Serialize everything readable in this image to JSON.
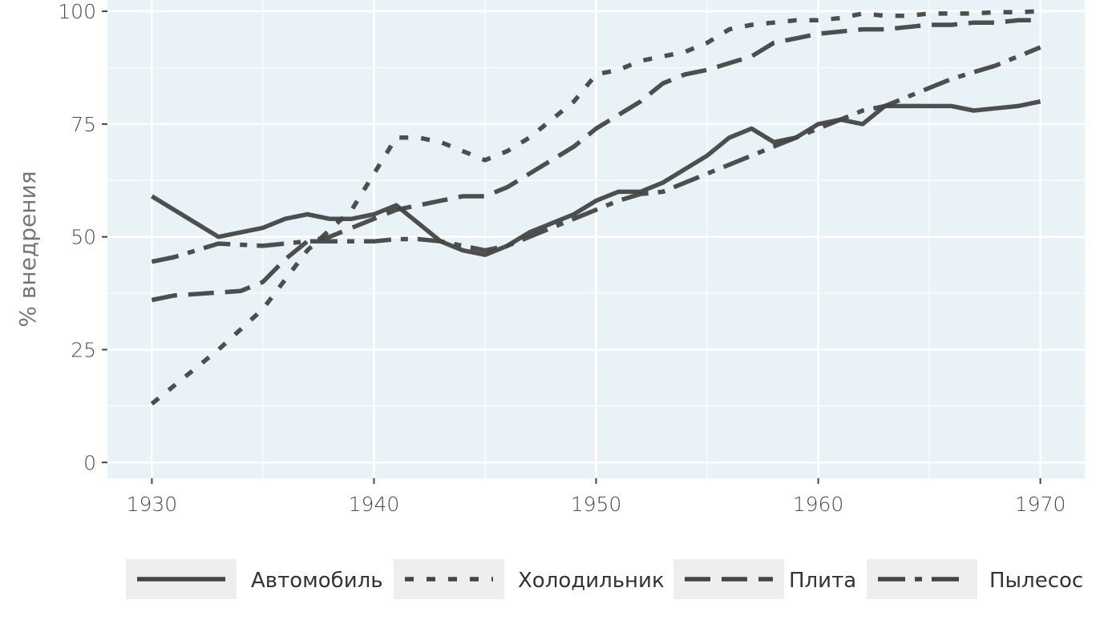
{
  "chart_data": {
    "type": "line",
    "title": "",
    "xlabel": "",
    "ylabel": "% внедрения",
    "xlim": [
      1928,
      1972
    ],
    "ylim": [
      -3.5,
      102.5
    ],
    "x_ticks": [
      1930,
      1940,
      1950,
      1960,
      1970
    ],
    "y_ticks": [
      0,
      25,
      50,
      75,
      100
    ],
    "grid": true,
    "legend_position": "bottom",
    "line_color": "#444444",
    "panel_background": "#e9f2f6",
    "series": [
      {
        "name": "Автомобиль",
        "dash": "solid",
        "x": [
          1930,
          1933,
          1935,
          1936,
          1937,
          1938,
          1939,
          1940,
          1941,
          1942,
          1943,
          1944,
          1945,
          1946,
          1947,
          1948,
          1949,
          1950,
          1951,
          1952,
          1953,
          1954,
          1955,
          1956,
          1957,
          1958,
          1959,
          1960,
          1961,
          1962,
          1963,
          1964,
          1965,
          1966,
          1967,
          1968,
          1969,
          1970
        ],
        "y": [
          59,
          50,
          52,
          54,
          55,
          54,
          54,
          55,
          57,
          53,
          49,
          47,
          46,
          48,
          51,
          53,
          55,
          58,
          60,
          60,
          62,
          65,
          68,
          72,
          74,
          71,
          72,
          75,
          76,
          75,
          79,
          79,
          79,
          79,
          78,
          78.5,
          79,
          80
        ]
      },
      {
        "name": "Холодильник",
        "dash": "dotted",
        "x": [
          1930,
          1933,
          1935,
          1937,
          1939,
          1940,
          1941,
          1942,
          1943,
          1944,
          1945,
          1946,
          1947,
          1948,
          1949,
          1950,
          1951,
          1952,
          1953,
          1954,
          1955,
          1956,
          1957,
          1958,
          1959,
          1960,
          1961,
          1962,
          1963,
          1964,
          1965,
          1966,
          1967,
          1968,
          1969,
          1970
        ],
        "y": [
          13,
          25,
          34,
          47,
          56,
          64,
          72,
          72,
          71,
          69,
          67,
          69,
          72,
          76,
          80,
          86,
          87,
          89,
          90,
          91,
          93,
          96,
          97,
          97.5,
          98,
          98,
          98.5,
          99.5,
          99,
          99,
          99.5,
          99.5,
          99.5,
          99.8,
          99.8,
          100
        ]
      },
      {
        "name": "Плита",
        "dash": "dashed",
        "x": [
          1930,
          1931,
          1934,
          1935,
          1936,
          1937,
          1938,
          1939,
          1940,
          1941,
          1942,
          1943,
          1944,
          1945,
          1946,
          1947,
          1948,
          1949,
          1950,
          1951,
          1952,
          1953,
          1954,
          1955,
          1956,
          1957,
          1958,
          1959,
          1960,
          1961,
          1962,
          1963,
          1964,
          1965,
          1966,
          1967,
          1968,
          1969,
          1970
        ],
        "y": [
          36,
          37,
          38,
          40,
          45,
          49,
          50,
          52,
          54,
          56,
          57,
          58,
          59,
          59,
          61,
          64,
          67,
          70,
          74,
          77,
          80,
          84,
          86,
          87,
          88.5,
          90,
          93,
          94,
          95,
          95.5,
          96,
          96,
          96.5,
          97,
          97,
          97.5,
          97.5,
          98,
          98
        ]
      },
      {
        "name": "Пылесос",
        "dash": "dashdot",
        "x": [
          1930,
          1931,
          1933,
          1935,
          1937,
          1938,
          1939,
          1940,
          1941,
          1942,
          1943,
          1944,
          1945,
          1946,
          1947,
          1948,
          1949,
          1950,
          1951,
          1952,
          1953,
          1954,
          1955,
          1956,
          1957,
          1958,
          1959,
          1960,
          1961,
          1962,
          1963,
          1964,
          1965,
          1966,
          1967,
          1968,
          1969,
          1970
        ],
        "y": [
          44.5,
          45.5,
          48.5,
          48,
          49,
          49,
          49,
          49,
          49.5,
          49.5,
          49,
          48,
          47,
          48,
          50,
          52,
          54,
          56,
          58,
          59.5,
          60,
          62,
          64,
          66,
          68,
          70,
          72,
          74,
          76,
          78,
          79,
          81,
          83,
          85,
          86.5,
          88,
          90,
          92
        ]
      }
    ]
  }
}
